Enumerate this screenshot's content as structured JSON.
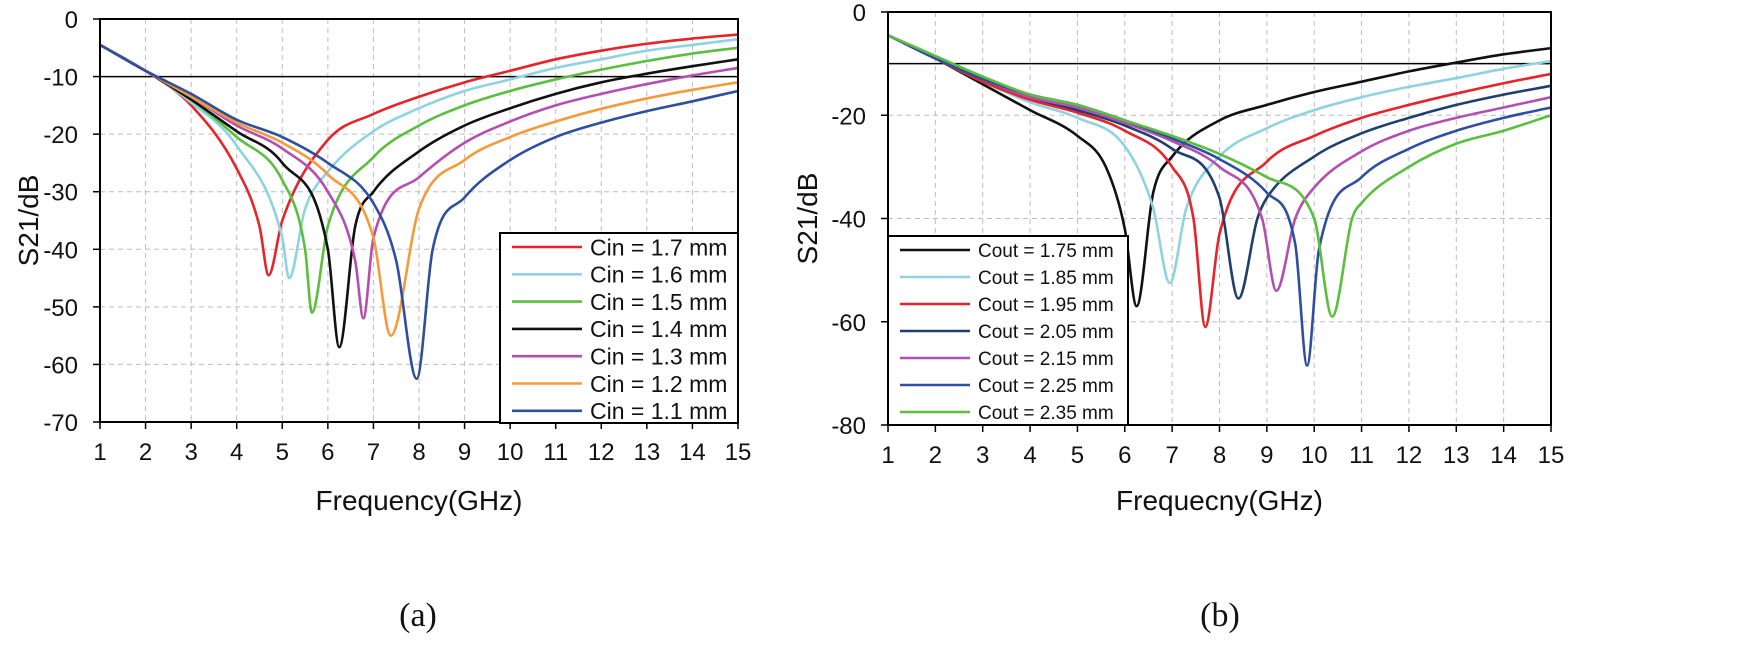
{
  "chart_data": [
    {
      "type": "line",
      "panel_label": "(a)",
      "xlabel": "Frequency(GHz)",
      "ylabel": "S21/dB",
      "xlim": [
        1,
        15
      ],
      "ylim": [
        -70,
        0
      ],
      "x_ticks": [
        1,
        2,
        3,
        4,
        5,
        6,
        7,
        8,
        9,
        10,
        11,
        12,
        13,
        14,
        15
      ],
      "y_ticks": [
        0,
        -10,
        -20,
        -30,
        -40,
        -50,
        -60,
        -70
      ],
      "grid": true,
      "reference_line": -10,
      "legend_position": "bottom-right",
      "series": [
        {
          "name": "Cin = 1.7 mm",
          "color": "#e8232a",
          "x": [
            1,
            2,
            3,
            4,
            4.5,
            4.7,
            5,
            6,
            7,
            8,
            9,
            10,
            11,
            12,
            13,
            14,
            15
          ],
          "y": [
            -4.5,
            -9,
            -15,
            -26,
            -36,
            -44.5,
            -35,
            -21,
            -16.5,
            -13.5,
            -11,
            -9,
            -7,
            -5.5,
            -4.3,
            -3.4,
            -2.7
          ]
        },
        {
          "name": "Cin = 1.6 mm",
          "color": "#8fd3e3",
          "x": [
            1,
            2,
            3,
            4,
            5,
            5.15,
            5.5,
            6,
            7,
            8,
            9,
            10,
            11,
            12,
            13,
            14,
            15
          ],
          "y": [
            -4.5,
            -9,
            -14.5,
            -22,
            -38,
            -45,
            -33,
            -26.5,
            -19.5,
            -15.5,
            -12.5,
            -10.5,
            -8.5,
            -7,
            -5.5,
            -4.5,
            -3.5
          ]
        },
        {
          "name": "Cin = 1.5 mm",
          "color": "#5abf3f",
          "x": [
            1,
            2,
            3,
            4,
            5,
            5.5,
            5.65,
            6,
            7,
            8,
            9,
            10,
            11,
            12,
            13,
            14,
            15
          ],
          "y": [
            -4.5,
            -9,
            -14,
            -20.5,
            -28,
            -40,
            -51,
            -36,
            -24,
            -18.5,
            -15,
            -12.5,
            -10.5,
            -8.8,
            -7.3,
            -6,
            -5
          ]
        },
        {
          "name": "Cin = 1.4 mm",
          "color": "#111111",
          "x": [
            1,
            2,
            3,
            4,
            5,
            6,
            6.25,
            6.6,
            7,
            8,
            9,
            10,
            11,
            12,
            13,
            14,
            15
          ],
          "y": [
            -4.5,
            -9,
            -14,
            -19.5,
            -25,
            -40,
            -57,
            -36,
            -30,
            -23,
            -18.5,
            -15.5,
            -13,
            -11,
            -9.5,
            -8.2,
            -7
          ]
        },
        {
          "name": "Cin = 1.3 mm",
          "color": "#b44fb0",
          "x": [
            1,
            2,
            3,
            4,
            5,
            6,
            6.6,
            6.78,
            7,
            8,
            9,
            10,
            11,
            12,
            13,
            14,
            15
          ],
          "y": [
            -4.5,
            -9,
            -13.5,
            -18.5,
            -22.5,
            -30,
            -42,
            -52,
            -38,
            -27.5,
            -21.5,
            -17.8,
            -15,
            -13,
            -11.3,
            -9.8,
            -8.5
          ]
        },
        {
          "name": "Cin = 1.2 mm",
          "color": "#f59a3b",
          "x": [
            1,
            2,
            3,
            4,
            5,
            6,
            7,
            7.38,
            8,
            9,
            10,
            11,
            12,
            13,
            14,
            15
          ],
          "y": [
            -4.5,
            -9,
            -13.5,
            -18,
            -21.5,
            -27,
            -38,
            -55,
            -33,
            -24.5,
            -20.5,
            -17.8,
            -15.6,
            -13.8,
            -12.3,
            -11
          ]
        },
        {
          "name": "Cin = 1.1 mm",
          "color": "#2e4fa0",
          "x": [
            1,
            2,
            3,
            4,
            5,
            6,
            7,
            7.5,
            7.95,
            8.3,
            9,
            10,
            11,
            12,
            13,
            14,
            15
          ],
          "y": [
            -4.5,
            -9,
            -13,
            -17.5,
            -20.5,
            -25,
            -32,
            -42,
            -62.5,
            -40,
            -31,
            -24.5,
            -20.5,
            -18,
            -16,
            -14.3,
            -12.5
          ]
        }
      ]
    },
    {
      "type": "line",
      "panel_label": "(b)",
      "xlabel": "Frequecny(GHz)",
      "ylabel": "S21/dB",
      "xlim": [
        1,
        15
      ],
      "ylim": [
        -80,
        0
      ],
      "x_ticks": [
        1,
        2,
        3,
        4,
        5,
        6,
        7,
        8,
        9,
        10,
        11,
        12,
        13,
        14,
        15
      ],
      "y_ticks": [
        0,
        -20,
        -40,
        -60,
        -80
      ],
      "grid": true,
      "reference_line": -10,
      "legend_position": "bottom-left",
      "series": [
        {
          "name": "Cout = 1.75 mm",
          "color": "#111111",
          "x": [
            1,
            2,
            3,
            4,
            5,
            5.6,
            6,
            6.25,
            6.6,
            7,
            8,
            9,
            10,
            11,
            12,
            13,
            14,
            15
          ],
          "y": [
            -4.5,
            -9,
            -14,
            -19,
            -24,
            -30,
            -42,
            -57,
            -35,
            -28,
            -21,
            -18,
            -15.5,
            -13.5,
            -11.5,
            -9.8,
            -8.2,
            -7
          ]
        },
        {
          "name": "Cout = 1.85 mm",
          "color": "#8fd3e3",
          "x": [
            1,
            2,
            3,
            4,
            5,
            6,
            6.6,
            6.95,
            7.3,
            8,
            9,
            10,
            11,
            12,
            13,
            14,
            15
          ],
          "y": [
            -4.5,
            -9,
            -13.5,
            -17.5,
            -20.5,
            -26,
            -38,
            -52.5,
            -38,
            -28,
            -22.5,
            -19,
            -16.5,
            -14.5,
            -12.8,
            -11,
            -9.5
          ]
        },
        {
          "name": "Cout = 1.95 mm",
          "color": "#e8232a",
          "x": [
            1,
            2,
            3,
            4,
            5,
            6,
            7,
            7.45,
            7.7,
            8,
            9,
            10,
            11,
            12,
            13,
            14,
            15
          ],
          "y": [
            -4.5,
            -9,
            -13.5,
            -17,
            -19.5,
            -23,
            -30,
            -40,
            -61,
            -43,
            -29,
            -24,
            -20.5,
            -18,
            -15.8,
            -13.8,
            -12
          ]
        },
        {
          "name": "Cout = 2.05 mm",
          "color": "#1f3f6e",
          "x": [
            1,
            2,
            3,
            4,
            5,
            6,
            7,
            8,
            8.4,
            8.8,
            9,
            10,
            11,
            12,
            13,
            14,
            15
          ],
          "y": [
            -4.5,
            -9,
            -13,
            -16.5,
            -19,
            -22,
            -26.5,
            -36,
            -55.5,
            -40,
            -36,
            -28,
            -23.5,
            -20.5,
            -18,
            -16,
            -14.3
          ]
        },
        {
          "name": "Cout = 2.15 mm",
          "color": "#b44fb0",
          "x": [
            1,
            2,
            3,
            4,
            5,
            6,
            7,
            8,
            8.9,
            9.2,
            9.6,
            10,
            11,
            12,
            13,
            14,
            15
          ],
          "y": [
            -4.5,
            -9,
            -13,
            -16.5,
            -18.5,
            -21.5,
            -25,
            -30,
            -40,
            -54,
            -40,
            -34,
            -27,
            -23,
            -20.5,
            -18.5,
            -16.5
          ]
        },
        {
          "name": "Cout = 2.25 mm",
          "color": "#2e4fa0",
          "x": [
            1,
            2,
            3,
            4,
            5,
            6,
            7,
            8,
            9,
            9.6,
            9.85,
            10.1,
            11,
            12,
            13,
            14,
            15
          ],
          "y": [
            -4.5,
            -9,
            -13,
            -16,
            -18,
            -21,
            -24.5,
            -28.5,
            -35,
            -45,
            -68.5,
            -46,
            -32,
            -26.5,
            -23,
            -20.5,
            -18.5
          ]
        },
        {
          "name": "Cout = 2.35 mm",
          "color": "#5abf3f",
          "x": [
            1,
            2,
            3,
            4,
            5,
            6,
            7,
            8,
            9,
            10,
            10.38,
            10.8,
            11,
            12,
            13,
            14,
            15
          ],
          "y": [
            -4.5,
            -8.5,
            -12.5,
            -16,
            -18,
            -21,
            -24,
            -27.5,
            -32,
            -40,
            -59,
            -40,
            -37,
            -30,
            -25.5,
            -23,
            -20
          ]
        }
      ]
    }
  ]
}
